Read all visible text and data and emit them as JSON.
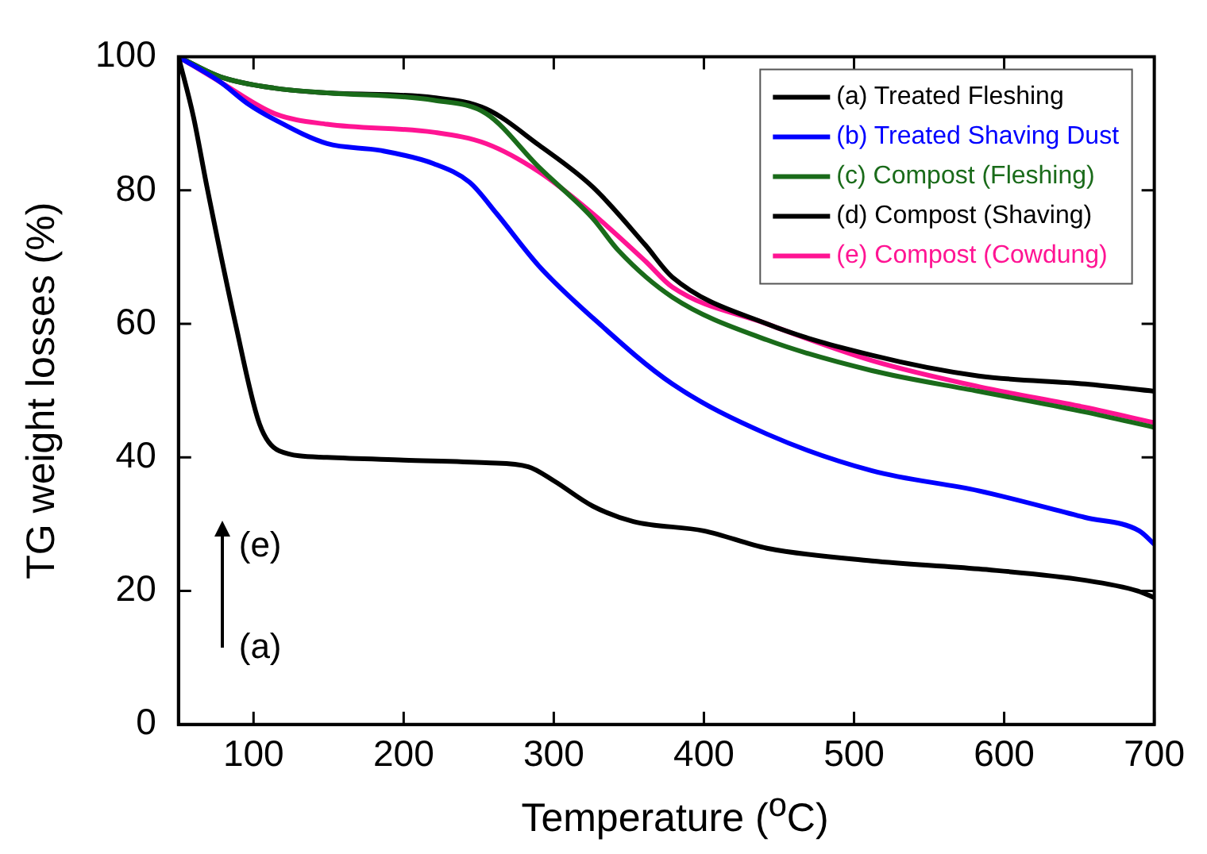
{
  "chart_data": {
    "type": "line",
    "xlabel": "Temperature ($^{o}$C)",
    "ylabel": "TG weight losses (%)",
    "xlim": [
      50,
      700
    ],
    "xticks": [
      100,
      200,
      300,
      400,
      500,
      600,
      700
    ],
    "ylim": [
      0,
      100
    ],
    "yticks": [
      0,
      20,
      40,
      60,
      80,
      100
    ],
    "grid": false,
    "legend": "top right",
    "marker": "none",
    "line_style": "solid",
    "annotations": [
      "(e)",
      "(a)"
    ],
    "series": [
      {
        "name": "(a) Treated Fleshing",
        "color": "#000000",
        "x": [
          50,
          60,
          69,
          88,
          104,
          117,
          149,
          200,
          255,
          283,
          300,
          326,
          353,
          400,
          442,
          512,
          583,
          654,
          689,
          700
        ],
        "values": [
          100,
          91,
          80.5,
          60,
          45,
          41,
          40,
          39.6,
          39.2,
          38.6,
          36.5,
          32.7,
          30.4,
          29,
          26.4,
          24.5,
          23.3,
          21.6,
          20,
          19
        ]
      },
      {
        "name": "(b) Treated Shaving Dust",
        "color": "#0000ff",
        "x": [
          50,
          78,
          96,
          114,
          149,
          184,
          220,
          244,
          262,
          290,
          326,
          379,
          442,
          512,
          583,
          654,
          690,
          700
        ],
        "values": [
          100,
          96.2,
          93,
          90.6,
          87,
          86,
          84,
          81.2,
          76.5,
          68.7,
          60.9,
          51,
          43.5,
          38,
          35,
          31,
          29,
          27
        ]
      },
      {
        "name": "(c) Compost (Fleshing)",
        "color": "#1a6b1a",
        "x": [
          50,
          78,
          114,
          149,
          220,
          255,
          290,
          326,
          343,
          379,
          442,
          512,
          583,
          654,
          700
        ],
        "values": [
          100,
          97,
          95.3,
          94.6,
          93.5,
          91.5,
          83.5,
          75.8,
          71,
          64,
          57.6,
          53,
          49.9,
          46.8,
          44.5
        ]
      },
      {
        "name": "(d) Compost (Shaving)",
        "color": "#000000",
        "x": [
          50,
          78,
          114,
          149,
          220,
          255,
          290,
          326,
          361,
          379,
          442,
          512,
          583,
          654,
          700
        ],
        "values": [
          100,
          97,
          95.3,
          94.6,
          93.9,
          92.2,
          86.8,
          80.5,
          71.8,
          67,
          60,
          55.3,
          52.2,
          51,
          49.9
        ]
      },
      {
        "name": "(e) Compost (Cowdung)",
        "color": "#ff1493",
        "x": [
          50,
          78,
          114,
          149,
          220,
          255,
          290,
          326,
          361,
          379,
          442,
          512,
          583,
          654,
          700
        ],
        "values": [
          100,
          96.2,
          91.5,
          89.9,
          88.7,
          87,
          82.8,
          76.5,
          69.4,
          65.5,
          60,
          54.5,
          50.6,
          47.5,
          45.2
        ]
      }
    ]
  }
}
